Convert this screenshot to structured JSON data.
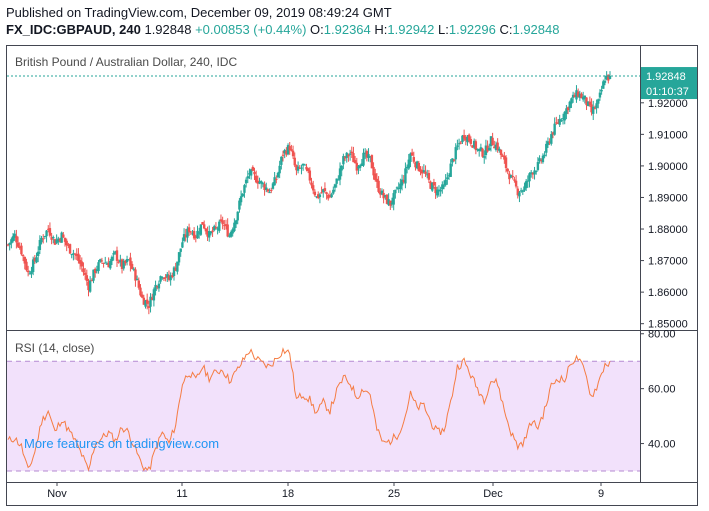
{
  "header": {
    "published": "Published on TradingView.com, December 09, 2019 08:49:24 GMT",
    "symbol": "FX_IDC:GBPAUD, 240",
    "last": "1.92848",
    "change": "+0.00853 (+0.44%)",
    "open_label": "O:",
    "open": "1.92364",
    "high_label": "H:",
    "high": "1.92942",
    "low_label": "L:",
    "low": "1.92296",
    "close_label": "C:",
    "close": "1.92848"
  },
  "colors": {
    "up": "#26a69a",
    "down": "#ef5350",
    "rsi_line": "#f57c43",
    "rsi_band": "#f2e1fb",
    "price_badge": "#26a69a",
    "watermark": "#2196f3"
  },
  "watermark": "More features on tradingview.com",
  "chart_data": [
    {
      "type": "candlestick",
      "title": "British Pound / Australian Dollar, 240, IDC",
      "x_ticks": [
        "Nov",
        "11",
        "18",
        "25",
        "Dec",
        "9"
      ],
      "y_ticks": [
        "1.85000",
        "1.86000",
        "1.87000",
        "1.88000",
        "1.89000",
        "1.90000",
        "1.91000",
        "1.92000"
      ],
      "ylim": [
        1.848,
        1.938
      ],
      "last_price_label": "1.92848",
      "countdown_label": "01:10:37",
      "close_path": [
        1.875,
        1.878,
        1.873,
        1.866,
        1.87,
        1.877,
        1.88,
        1.876,
        1.878,
        1.874,
        1.872,
        1.868,
        1.862,
        1.867,
        1.87,
        1.869,
        1.872,
        1.868,
        1.87,
        1.865,
        1.858,
        1.856,
        1.862,
        1.866,
        1.864,
        1.868,
        1.876,
        1.88,
        1.878,
        1.882,
        1.878,
        1.88,
        1.882,
        1.878,
        1.884,
        1.892,
        1.898,
        1.896,
        1.894,
        1.892,
        1.896,
        1.904,
        1.906,
        1.898,
        1.9,
        1.896,
        1.89,
        1.892,
        1.89,
        1.895,
        1.902,
        1.904,
        1.9,
        1.903,
        1.902,
        1.894,
        1.89,
        1.888,
        1.892,
        1.896,
        1.904,
        1.9,
        1.898,
        1.894,
        1.892,
        1.893,
        1.9,
        1.906,
        1.91,
        1.908,
        1.905,
        1.904,
        1.908,
        1.906,
        1.901,
        1.896,
        1.892,
        1.893,
        1.898,
        1.9,
        1.904,
        1.91,
        1.914,
        1.917,
        1.921,
        1.923,
        1.921,
        1.917,
        1.92,
        1.928
      ]
    },
    {
      "type": "line",
      "title": "RSI (14, close)",
      "y_ticks": [
        "40.00",
        "60.00",
        "80.00"
      ],
      "ylim": [
        26,
        81
      ],
      "band": [
        30,
        70
      ],
      "values": [
        41,
        42,
        39,
        30,
        37,
        48,
        52,
        44,
        49,
        45,
        41,
        36,
        30,
        40,
        42,
        44,
        41,
        46,
        44,
        38,
        32,
        30,
        38,
        44,
        40,
        47,
        62,
        66,
        63,
        68,
        64,
        66,
        67,
        63,
        66,
        70,
        74,
        71,
        69,
        68,
        71,
        74,
        73,
        56,
        58,
        56,
        51,
        55,
        52,
        59,
        64,
        62,
        57,
        60,
        58,
        45,
        40,
        41,
        43,
        48,
        58,
        53,
        54,
        48,
        44,
        45,
        55,
        68,
        70,
        65,
        60,
        56,
        63,
        62,
        52,
        44,
        39,
        41,
        48,
        46,
        52,
        61,
        64,
        63,
        70,
        71,
        66,
        57,
        62,
        69
      ]
    }
  ]
}
